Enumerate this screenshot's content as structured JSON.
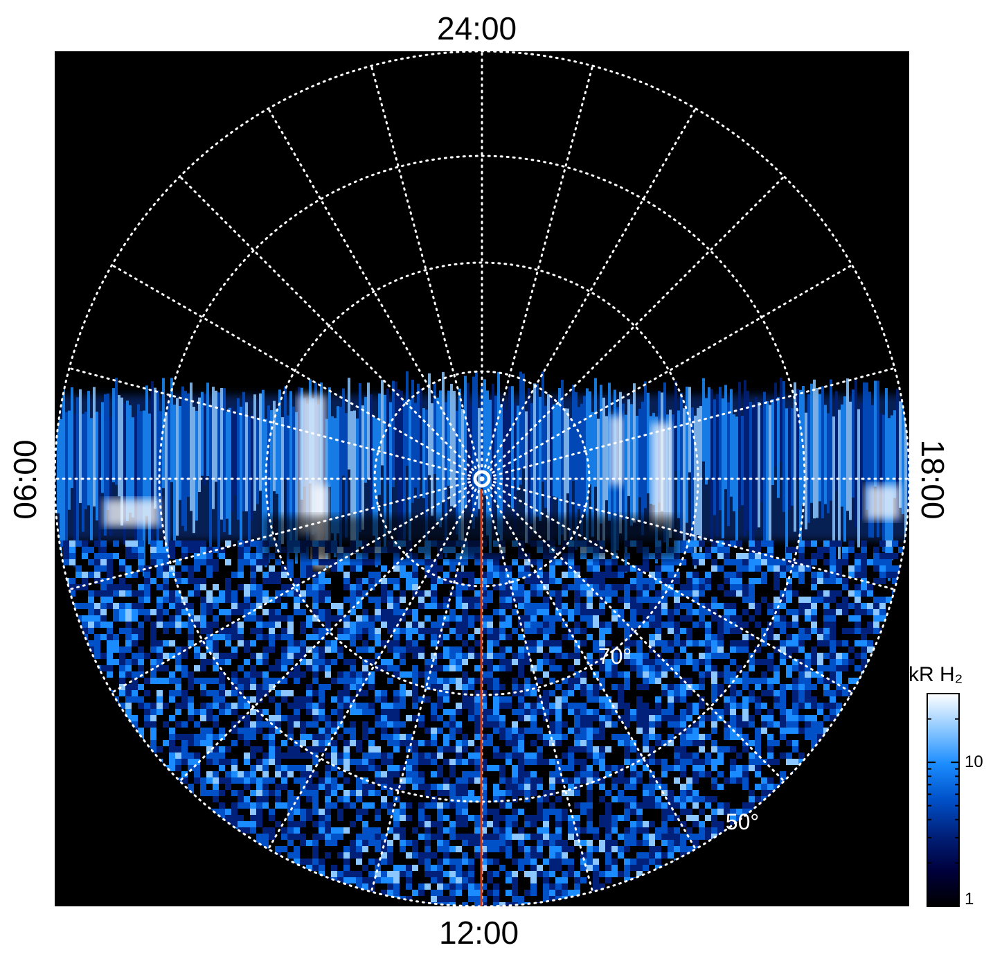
{
  "chart_data": {
    "type": "heatmap",
    "projection": "polar (local time / latitude)",
    "local_time_labels": {
      "top": "24:00",
      "bottom": "12:00",
      "left": "06:00",
      "right": "18:00"
    },
    "latitude_labels": [
      {
        "text": "70°",
        "value": 70
      },
      {
        "text": "50°",
        "value": 50
      }
    ],
    "colorbar": {
      "label": "kR H₂",
      "scale": "log",
      "range": [
        1,
        30
      ],
      "ticks": [
        "10",
        "1"
      ],
      "colormap": [
        "#000000",
        "#00003c",
        "#00207a",
        "#0050c8",
        "#1a8cff",
        "#8cc8ff",
        "#ffffff"
      ]
    },
    "grid": true,
    "grid_color": "#ffffff",
    "marker_line_color": "#d23c14",
    "background": "#000000"
  }
}
